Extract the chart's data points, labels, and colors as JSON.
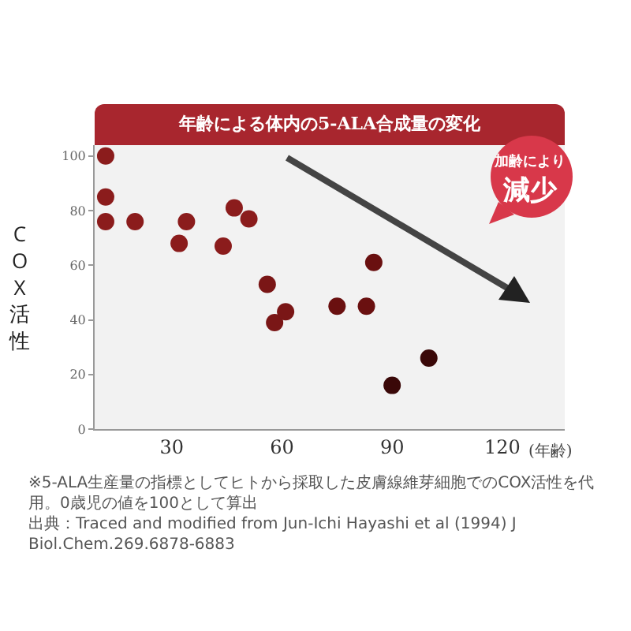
{
  "chart_data": {
    "type": "scatter",
    "title": "年齢による体内の5-ALA合成量の変化",
    "xlabel": "(年齢)",
    "ylabel": "COX活性",
    "x": [
      12,
      12,
      12,
      20,
      32,
      34,
      44,
      47,
      51,
      56,
      58,
      61,
      75,
      83,
      85,
      90,
      100
    ],
    "values": [
      100,
      85,
      76,
      76,
      68,
      76,
      67,
      81,
      77,
      53,
      39,
      43,
      45,
      45,
      61,
      16,
      26
    ],
    "colors": [
      "#8b1c1c",
      "#8b1c1c",
      "#8b1c1c",
      "#8b1c1c",
      "#8b1c1c",
      "#8b1c1c",
      "#8b1c1c",
      "#8b1c1c",
      "#8b1c1c",
      "#7a1616",
      "#7a1616",
      "#7a1616",
      "#6a1010",
      "#6a1010",
      "#6a1010",
      "#3a0808",
      "#3a0808"
    ],
    "xlim": [
      9,
      137
    ],
    "ylim": [
      0,
      104
    ],
    "xticks": [
      30,
      60,
      90,
      120
    ],
    "yticks": [
      0,
      20,
      40,
      60,
      80,
      100
    ],
    "grid": false,
    "marker": "circle",
    "annotations": [
      "加齢により",
      "減少",
      "※5-ALA生産量の指標としてヒトから採取した皮膚線維芽細胞でのCOX活性を代用。0歳児の値を100として算出",
      "出典：Traced and modified from Jun-Ichi Hayashi et al (1994) J Biol.Chem.269.6878-6883"
    ]
  }
}
